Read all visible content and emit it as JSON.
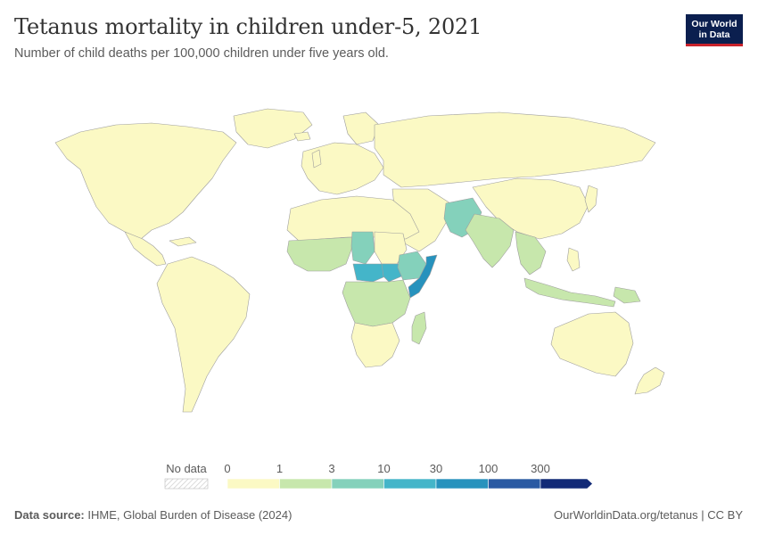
{
  "header": {
    "title": "Tetanus mortality in children under-5, 2021",
    "subtitle": "Number of child deaths per 100,000 children under five years old."
  },
  "logo": {
    "line1": "Our World",
    "line2": "in Data"
  },
  "legend": {
    "no_data_label": "No data",
    "thresholds": [
      "0",
      "1",
      "3",
      "10",
      "30",
      "100",
      "300"
    ],
    "colors": [
      "#fbf9c4",
      "#c7e7ac",
      "#84d1bb",
      "#44b5c9",
      "#2792bd",
      "#2a5aa3",
      "#122a77"
    ]
  },
  "map_data": {
    "metric": "Number of child deaths per 100,000 children under five years old",
    "year": 2021,
    "bins": [
      {
        "range": "0–1",
        "color": "#fbf9c4",
        "regions": [
          "North America",
          "South America",
          "Europe",
          "Russia",
          "China",
          "Australia",
          "North Africa",
          "Southern Africa",
          "Middle East"
        ]
      },
      {
        "range": "1–3",
        "color": "#c7e7ac",
        "regions": [
          "India",
          "Indonesia",
          "Central Africa",
          "East Africa",
          "West Africa",
          "Madagascar",
          "Southeast Asia"
        ]
      },
      {
        "range": "3–10",
        "color": "#84d1bb",
        "regions": [
          "Pakistan",
          "Afghanistan",
          "Chad",
          "Ethiopia"
        ]
      },
      {
        "range": "10–30",
        "color": "#44b5c9",
        "regions": [
          "South Sudan",
          "Central African Republic"
        ]
      },
      {
        "range": "30–100",
        "color": "#2792bd",
        "regions": [
          "Somalia"
        ]
      }
    ]
  },
  "footer": {
    "source_label": "Data source:",
    "source_text": "IHME, Global Burden of Disease (2024)",
    "url": "OurWorldinData.org/tetanus | CC BY"
  }
}
